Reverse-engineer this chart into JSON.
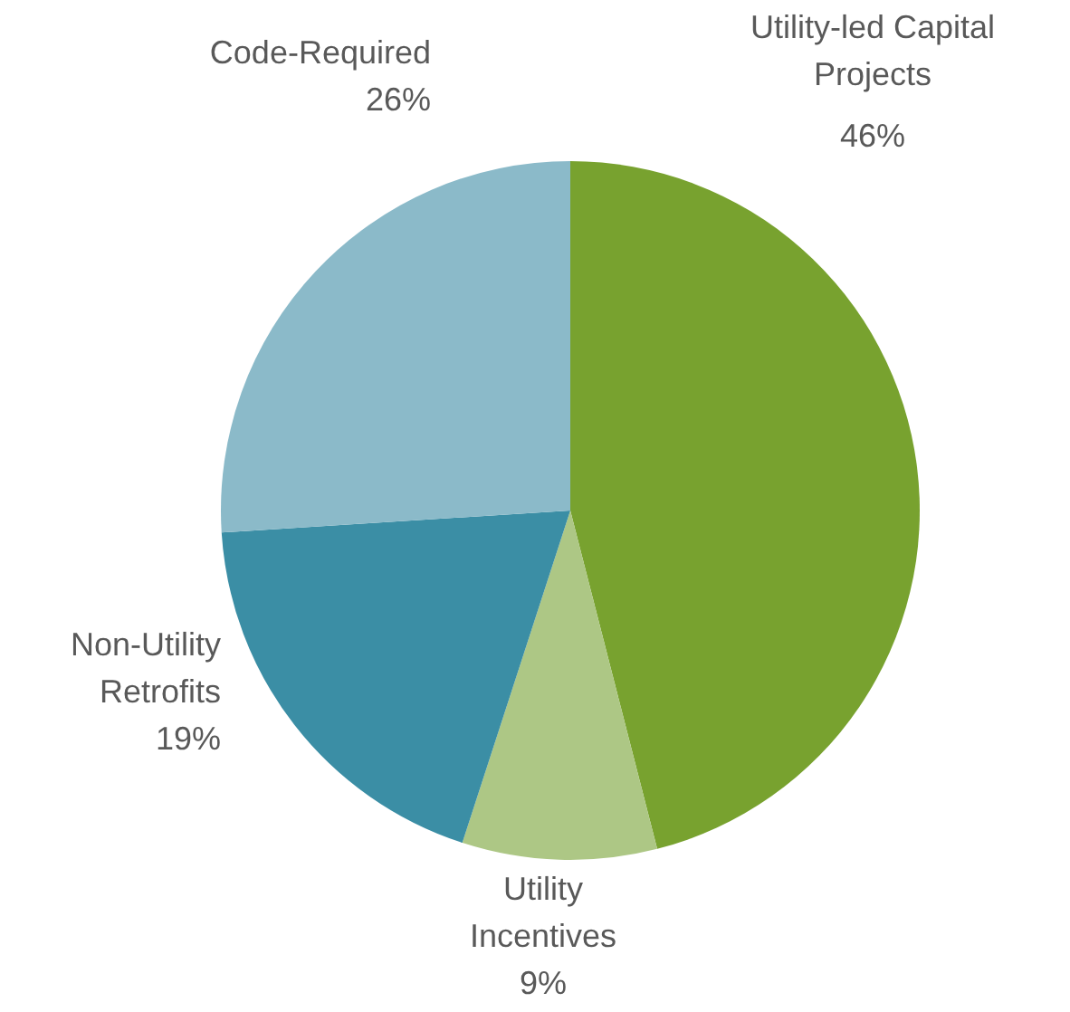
{
  "chart_data": {
    "type": "pie",
    "categories": [
      "Utility-led Capital Projects",
      "Utility Incentives",
      "Non-Utility Retrofits",
      "Code-Required"
    ],
    "values": [
      46,
      9,
      19,
      26
    ],
    "colors": [
      "#78a22f",
      "#adc785",
      "#3b8ea5",
      "#8bbac9"
    ],
    "value_labels": [
      "46%",
      "9%",
      "19%",
      "26%"
    ],
    "legend": false
  }
}
